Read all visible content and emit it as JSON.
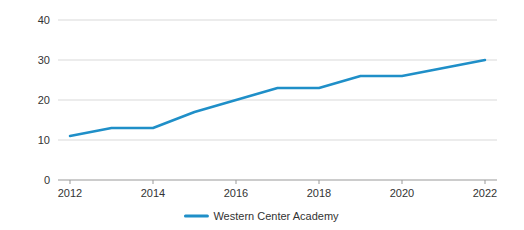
{
  "chart_data": {
    "type": "line",
    "x": [
      2012,
      2013,
      2014,
      2015,
      2016,
      2017,
      2018,
      2019,
      2020,
      2021,
      2022
    ],
    "series": [
      {
        "name": "Western Center Academy",
        "color": "#1f8fc8",
        "values": [
          11,
          13,
          13,
          17,
          20,
          23,
          23,
          26,
          26,
          28,
          30
        ]
      }
    ],
    "xlim": [
      2012,
      2022
    ],
    "xticks": [
      2012,
      2014,
      2016,
      2018,
      2020,
      2022
    ],
    "ylim": [
      0,
      40
    ],
    "yticks": [
      0,
      10,
      20,
      30,
      40
    ],
    "grid": true,
    "legend": "bottom"
  }
}
